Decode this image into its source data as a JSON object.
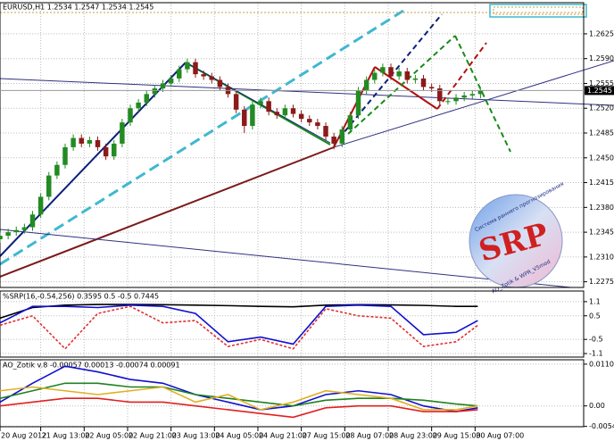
{
  "chart_data": [
    {
      "type": "candlestick",
      "title": "EURUSD,H1 1.2534 1.2547 1.2534 1.2545",
      "x": [
        0,
        3,
        6,
        9,
        12,
        15,
        18,
        21,
        24,
        27,
        30,
        33,
        36,
        39,
        42,
        45,
        48,
        51,
        54,
        57,
        60,
        63,
        66,
        69,
        72,
        75,
        78,
        81,
        84,
        87,
        90,
        93,
        96,
        99,
        102,
        105,
        108,
        111,
        114,
        117,
        120,
        123,
        126,
        129,
        132,
        135,
        138,
        141,
        144,
        147,
        150,
        153,
        156,
        159,
        162,
        165,
        168,
        171,
        174,
        177
      ],
      "open": [
        1.2335,
        1.234,
        1.2345,
        1.2348,
        1.2352,
        1.237,
        1.2395,
        1.2425,
        1.244,
        1.2465,
        1.2478,
        1.247,
        1.2475,
        1.2465,
        1.2452,
        1.247,
        1.25,
        1.252,
        1.2528,
        1.254,
        1.2548,
        1.2555,
        1.2562,
        1.2575,
        1.2585,
        1.2568,
        1.2565,
        1.256,
        1.255,
        1.254,
        1.2518,
        1.2495,
        1.2525,
        1.253,
        1.2515,
        1.251,
        1.252,
        1.2512,
        1.2505,
        1.25,
        1.2495,
        1.248,
        1.247,
        1.249,
        1.251,
        1.2545,
        1.256,
        1.257,
        1.2578,
        1.2565,
        1.2572,
        1.256,
        1.2562,
        1.255,
        1.2548,
        1.253,
        1.253,
        1.2535,
        1.2538,
        1.254
      ],
      "high": [
        1.2345,
        1.235,
        1.2353,
        1.2357,
        1.2375,
        1.24,
        1.243,
        1.2445,
        1.247,
        1.2483,
        1.2483,
        1.248,
        1.248,
        1.247,
        1.2475,
        1.2505,
        1.2525,
        1.2533,
        1.2545,
        1.2553,
        1.256,
        1.2567,
        1.258,
        1.259,
        1.259,
        1.2573,
        1.257,
        1.2565,
        1.2555,
        1.2545,
        1.2523,
        1.253,
        1.2535,
        1.2535,
        1.252,
        1.2525,
        1.2525,
        1.2517,
        1.251,
        1.2505,
        1.25,
        1.2485,
        1.2495,
        1.2515,
        1.255,
        1.2565,
        1.2575,
        1.2583,
        1.2583,
        1.2577,
        1.2577,
        1.2567,
        1.2567,
        1.2555,
        1.2553,
        1.2535,
        1.254,
        1.2543,
        1.2545,
        1.2547
      ],
      "low": [
        1.233,
        1.2335,
        1.234,
        1.2343,
        1.2347,
        1.2365,
        1.239,
        1.242,
        1.2435,
        1.246,
        1.2465,
        1.2465,
        1.246,
        1.2447,
        1.2447,
        1.2465,
        1.2495,
        1.2515,
        1.2523,
        1.2535,
        1.2543,
        1.255,
        1.2557,
        1.257,
        1.2563,
        1.256,
        1.2555,
        1.2545,
        1.2535,
        1.2513,
        1.2485,
        1.249,
        1.252,
        1.251,
        1.2505,
        1.2505,
        1.2507,
        1.25,
        1.2495,
        1.249,
        1.2475,
        1.2462,
        1.2465,
        1.2485,
        1.2505,
        1.254,
        1.2555,
        1.2565,
        1.256,
        1.256,
        1.2555,
        1.2555,
        1.2545,
        1.2543,
        1.2525,
        1.2525,
        1.2525,
        1.253,
        1.2533,
        1.2534
      ],
      "close": [
        1.234,
        1.2345,
        1.2348,
        1.2352,
        1.237,
        1.2395,
        1.2425,
        1.244,
        1.2465,
        1.2478,
        1.247,
        1.2475,
        1.2465,
        1.2452,
        1.247,
        1.25,
        1.252,
        1.2528,
        1.254,
        1.2548,
        1.2555,
        1.2562,
        1.2575,
        1.2585,
        1.2568,
        1.2565,
        1.256,
        1.255,
        1.254,
        1.2518,
        1.2495,
        1.2525,
        1.253,
        1.2515,
        1.251,
        1.252,
        1.2512,
        1.2505,
        1.25,
        1.2495,
        1.248,
        1.247,
        1.249,
        1.251,
        1.2545,
        1.256,
        1.257,
        1.2578,
        1.2565,
        1.2572,
        1.256,
        1.2562,
        1.255,
        1.2548,
        1.253,
        1.253,
        1.2535,
        1.2538,
        1.254,
        1.2545
      ],
      "up_color": "#228b22",
      "down_color": "#8b1a1a",
      "xlim": [
        0,
        215
      ],
      "xticks": [
        {
          "value": 0,
          "label": "20 Aug 2012"
        },
        {
          "value": 15,
          "label": "21 Aug 13:00"
        },
        {
          "value": 31,
          "label": "22 Aug 05:00"
        },
        {
          "value": 47,
          "label": "22 Aug 21:00"
        },
        {
          "value": 63,
          "label": "23 Aug 13:00"
        },
        {
          "value": 79,
          "label": "24 Aug 05:00"
        },
        {
          "value": 95,
          "label": "24 Aug 21:00"
        },
        {
          "value": 111,
          "label": "27 Aug 15:00"
        },
        {
          "value": 127,
          "label": "28 Aug 07:00"
        },
        {
          "value": 143,
          "label": "28 Aug 23:00"
        },
        {
          "value": 159,
          "label": "29 Aug 15:00"
        },
        {
          "value": 175,
          "label": "30 Aug 07:00"
        }
      ],
      "ylim": [
        1.2267,
        1.2669
      ],
      "yticks": [
        1.2625,
        {
          "value": 1.259,
          "label": "1.2590"
        },
        1.2555,
        {
          "value": 1.252,
          "label": "1.2520"
        },
        1.2485,
        {
          "value": 1.245,
          "label": "1.2450"
        },
        1.2415,
        {
          "value": 1.238,
          "label": "1.2380"
        },
        1.2345,
        {
          "value": 1.231,
          "label": "1.2310"
        },
        1.2275
      ],
      "price_label": 1.2545,
      "grid": true,
      "logo": {
        "title": "SRP",
        "text": "Система раннего прогнозирования",
        "credit": "AO_Zotik & WPR_V5mod"
      }
    },
    {
      "type": "line",
      "title": "%SRP(16,-0.54,256) 0.3595 0.5 -0.5 0.7445",
      "x": [
        0,
        12,
        24,
        36,
        48,
        60,
        72,
        84,
        96,
        108,
        120,
        132,
        144,
        156,
        168,
        176
      ],
      "series": [
        {
          "color": "#000000",
          "style": "solid",
          "values": [
            0.4,
            0.85,
            0.95,
            0.98,
            0.98,
            0.97,
            0.95,
            0.93,
            0.9,
            0.88,
            0.95,
            0.97,
            0.96,
            0.94,
            0.9,
            0.9
          ]
        },
        {
          "color": "#1010d0",
          "style": "solid",
          "values": [
            0.2,
            0.9,
            0.9,
            0.85,
            0.95,
            0.9,
            0.6,
            -0.6,
            -0.4,
            -0.7,
            0.9,
            0.95,
            0.9,
            -0.3,
            -0.2,
            0.3
          ]
        },
        {
          "color": "#e03030",
          "style": "dashed",
          "values": [
            0.1,
            0.5,
            -0.9,
            0.6,
            0.9,
            0.2,
            0.3,
            -0.8,
            -0.5,
            -0.9,
            0.8,
            0.5,
            0.4,
            -0.8,
            -0.6,
            0.1
          ]
        }
      ],
      "ylim": [
        -1.25,
        1.55
      ],
      "yticks": [
        1.1,
        0.5,
        -0.5,
        -1.1
      ]
    },
    {
      "type": "line",
      "title": "AO_Zotik v.8 -0.00057 0.00013 -0.00074 0.00091",
      "x": [
        0,
        12,
        24,
        36,
        48,
        60,
        72,
        84,
        96,
        108,
        120,
        132,
        144,
        156,
        168,
        176
      ],
      "series": [
        {
          "color": "#1010d0",
          "style": "solid",
          "values": [
            0.001,
            0.006,
            0.0105,
            0.009,
            0.007,
            0.006,
            0.003,
            0.001,
            -0.001,
            0.0,
            0.003,
            0.004,
            0.003,
            0.0,
            -0.0015,
            -0.0005
          ]
        },
        {
          "color": "#208020",
          "style": "solid",
          "values": [
            0.002,
            0.004,
            0.006,
            0.006,
            0.005,
            0.005,
            0.003,
            0.002,
            0.001,
            0.0,
            0.0015,
            0.002,
            0.002,
            0.0015,
            0.0005,
            0.0
          ]
        },
        {
          "color": "#e0b020",
          "style": "solid",
          "values": [
            0.004,
            0.005,
            0.004,
            0.003,
            0.004,
            0.005,
            0.001,
            0.003,
            -0.001,
            0.001,
            0.004,
            0.003,
            0.002,
            -0.001,
            -0.001,
            0.0
          ]
        },
        {
          "color": "#e02020",
          "style": "solid",
          "values": [
            0.0,
            0.001,
            0.002,
            0.002,
            0.001,
            0.001,
            0.0,
            -0.001,
            -0.002,
            -0.003,
            -0.0005,
            0.0,
            0.0,
            -0.0015,
            -0.0015,
            -0.001
          ]
        }
      ],
      "ylim": [
        -0.0055,
        0.0122
      ],
      "yticks": [
        0.01104,
        {
          "value": 0,
          "label": "0.00"
        },
        -0.00542
      ]
    }
  ]
}
